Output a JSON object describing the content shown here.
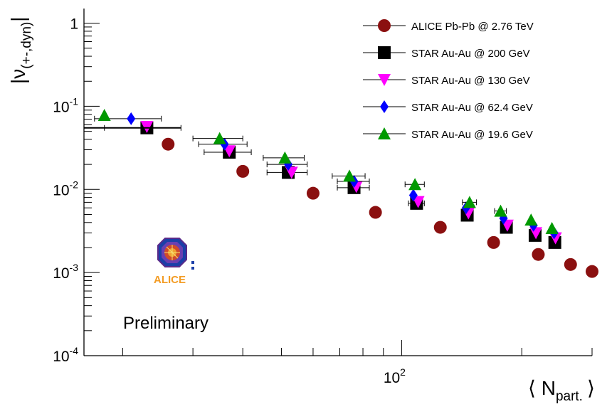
{
  "chart_data": {
    "type": "scatter",
    "xscale": "log",
    "yscale": "log",
    "xlim": [
      16,
      300
    ],
    "ylim": [
      0.0001,
      1.5
    ],
    "grid": false,
    "legend_position": "top-right",
    "ylabel": {
      "main": "|ν",
      "sub": "(+-,dyn)",
      "close": "|"
    },
    "xlabel": {
      "open": "⟨ N",
      "sub": "part.",
      "close": "⟩"
    },
    "yticks": [
      {
        "value": 1,
        "base": "1",
        "exp": ""
      },
      {
        "value": 0.1,
        "base": "10",
        "exp": "-1"
      },
      {
        "value": 0.01,
        "base": "10",
        "exp": "-2"
      },
      {
        "value": 0.001,
        "base": "10",
        "exp": "-3"
      },
      {
        "value": 0.0001,
        "base": "10",
        "exp": "-4"
      }
    ],
    "xticks": [
      {
        "value": 100,
        "base": "10",
        "exp": "2"
      }
    ],
    "annotation": {
      "text": "Preliminary",
      "color": "#8b1a1a"
    },
    "logo_text": "ALICE",
    "series": [
      {
        "name": "ALICE Pb-Pb @ 2.76 TeV",
        "marker": "circle",
        "color": "#8b1010",
        "x": [
          26,
          40,
          60,
          86,
          125,
          170,
          220,
          265,
          300
        ],
        "y": [
          0.035,
          0.0165,
          0.009,
          0.0053,
          0.0035,
          0.0023,
          0.00165,
          0.00125,
          0.00103
        ],
        "xerr": [
          0,
          0,
          0,
          0,
          0,
          0,
          0,
          0,
          0
        ]
      },
      {
        "name": "STAR Au-Au @ 200 GeV",
        "marker": "square",
        "color": "#000000",
        "x": [
          23,
          37,
          52,
          76,
          109,
          146,
          183,
          216,
          242
        ],
        "y": [
          0.055,
          0.028,
          0.016,
          0.0105,
          0.0068,
          0.0049,
          0.0035,
          0.0028,
          0.0023
        ],
        "xerr": [
          5,
          5,
          6,
          7,
          5,
          0,
          0,
          0,
          0
        ]
      },
      {
        "name": "STAR Au-Au @ 130 GeV",
        "marker": "triangle-down",
        "color": "#ff00ff",
        "x": [
          23,
          37,
          53,
          77,
          110,
          147,
          184,
          217,
          243
        ],
        "y": [
          0.057,
          0.029,
          0.016,
          0.0108,
          0.0071,
          0.0052,
          0.0037,
          0.003,
          0.0026
        ],
        "xerr": [
          0,
          0,
          0,
          0,
          0,
          0,
          0,
          0,
          0
        ]
      },
      {
        "name": "STAR Au-Au @ 62.4 GeV",
        "marker": "diamond",
        "color": "#0000ff",
        "x": [
          21,
          36,
          52,
          76,
          107,
          145,
          180,
          214,
          241
        ],
        "y": [
          0.071,
          0.035,
          0.02,
          0.0125,
          0.0085,
          0.006,
          0.0045,
          0.0037,
          0.003
        ],
        "xerr": [
          4,
          5,
          6,
          7,
          0,
          0,
          0,
          0,
          0
        ]
      },
      {
        "name": "STAR Au-Au @ 19.6 GeV",
        "marker": "triangle-up",
        "color": "#009900",
        "x": [
          18,
          35,
          51,
          74,
          108,
          148,
          177,
          211,
          238
        ],
        "y": [
          0.078,
          0.041,
          0.024,
          0.0145,
          0.0115,
          0.007,
          0.0055,
          0.0043,
          0.0034
        ],
        "xerr": [
          0,
          5,
          6,
          7,
          6,
          6,
          6,
          0,
          0
        ]
      }
    ]
  }
}
